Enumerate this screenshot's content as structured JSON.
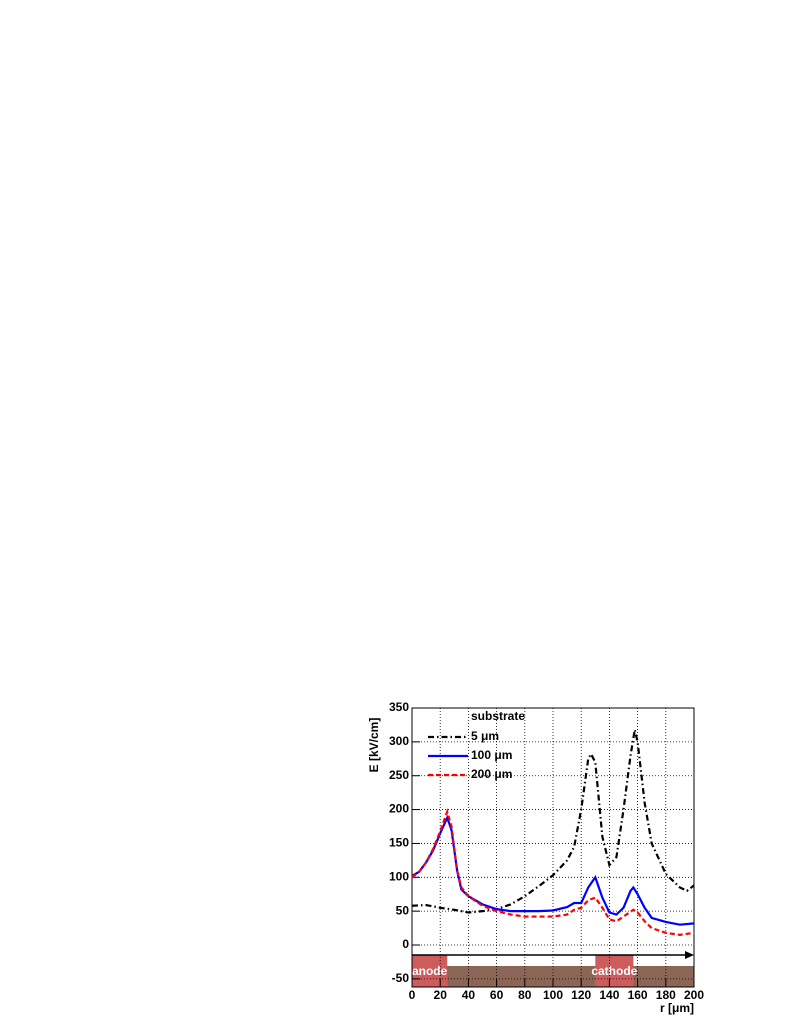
{
  "chart_data": {
    "type": "line",
    "ylabel": "E [kV/cm]",
    "xlabel": "r [μm]",
    "legend_title": "substrate",
    "xlim": [
      0,
      200
    ],
    "ylim": [
      -62,
      350
    ],
    "xticks": [
      0,
      20,
      40,
      60,
      80,
      100,
      120,
      140,
      160,
      180,
      200
    ],
    "yticks": [
      -50,
      0,
      50,
      100,
      150,
      200,
      250,
      300,
      350
    ],
    "grid": true,
    "regions": [
      {
        "label": "anode",
        "xrange": [
          0,
          25
        ]
      },
      {
        "label": "cathode",
        "xrange": [
          130,
          157
        ]
      }
    ],
    "series": [
      {
        "name": "5 μm",
        "color": "#000000",
        "dash": "dashdot",
        "x": [
          0,
          10,
          20,
          30,
          40,
          50,
          60,
          70,
          80,
          90,
          100,
          110,
          115,
          120,
          125,
          127,
          130,
          135,
          140,
          145,
          150,
          155,
          158,
          160,
          165,
          170,
          180,
          190,
          195,
          200
        ],
        "values": [
          58,
          59,
          55,
          52,
          48,
          50,
          53,
          60,
          72,
          87,
          103,
          125,
          145,
          200,
          275,
          282,
          270,
          160,
          118,
          130,
          200,
          280,
          318,
          300,
          210,
          150,
          105,
          85,
          80,
          88
        ]
      },
      {
        "name": "100 μm",
        "color": "#0000ff",
        "dash": "solid",
        "x": [
          0,
          5,
          10,
          15,
          20,
          25,
          28,
          32,
          35,
          40,
          50,
          60,
          70,
          80,
          90,
          100,
          110,
          115,
          120,
          125,
          130,
          135,
          140,
          145,
          150,
          155,
          157,
          160,
          165,
          170,
          180,
          190,
          200
        ],
        "values": [
          102,
          108,
          122,
          140,
          165,
          188,
          170,
          110,
          82,
          72,
          60,
          53,
          50,
          50,
          50,
          51,
          56,
          62,
          62,
          85,
          100,
          70,
          48,
          45,
          55,
          80,
          85,
          75,
          55,
          40,
          34,
          30,
          32
        ]
      },
      {
        "name": "200 μm",
        "color": "#ff0000",
        "dash": "dashed",
        "x": [
          0,
          5,
          10,
          15,
          20,
          25,
          28,
          32,
          35,
          40,
          50,
          60,
          70,
          80,
          90,
          100,
          110,
          115,
          120,
          125,
          130,
          135,
          140,
          145,
          150,
          157,
          160,
          165,
          170,
          180,
          190,
          200
        ],
        "values": [
          100,
          108,
          122,
          142,
          168,
          197,
          175,
          110,
          85,
          72,
          58,
          50,
          45,
          42,
          42,
          42,
          45,
          52,
          55,
          66,
          70,
          55,
          38,
          35,
          42,
          52,
          48,
          35,
          25,
          18,
          15,
          18
        ]
      }
    ]
  }
}
